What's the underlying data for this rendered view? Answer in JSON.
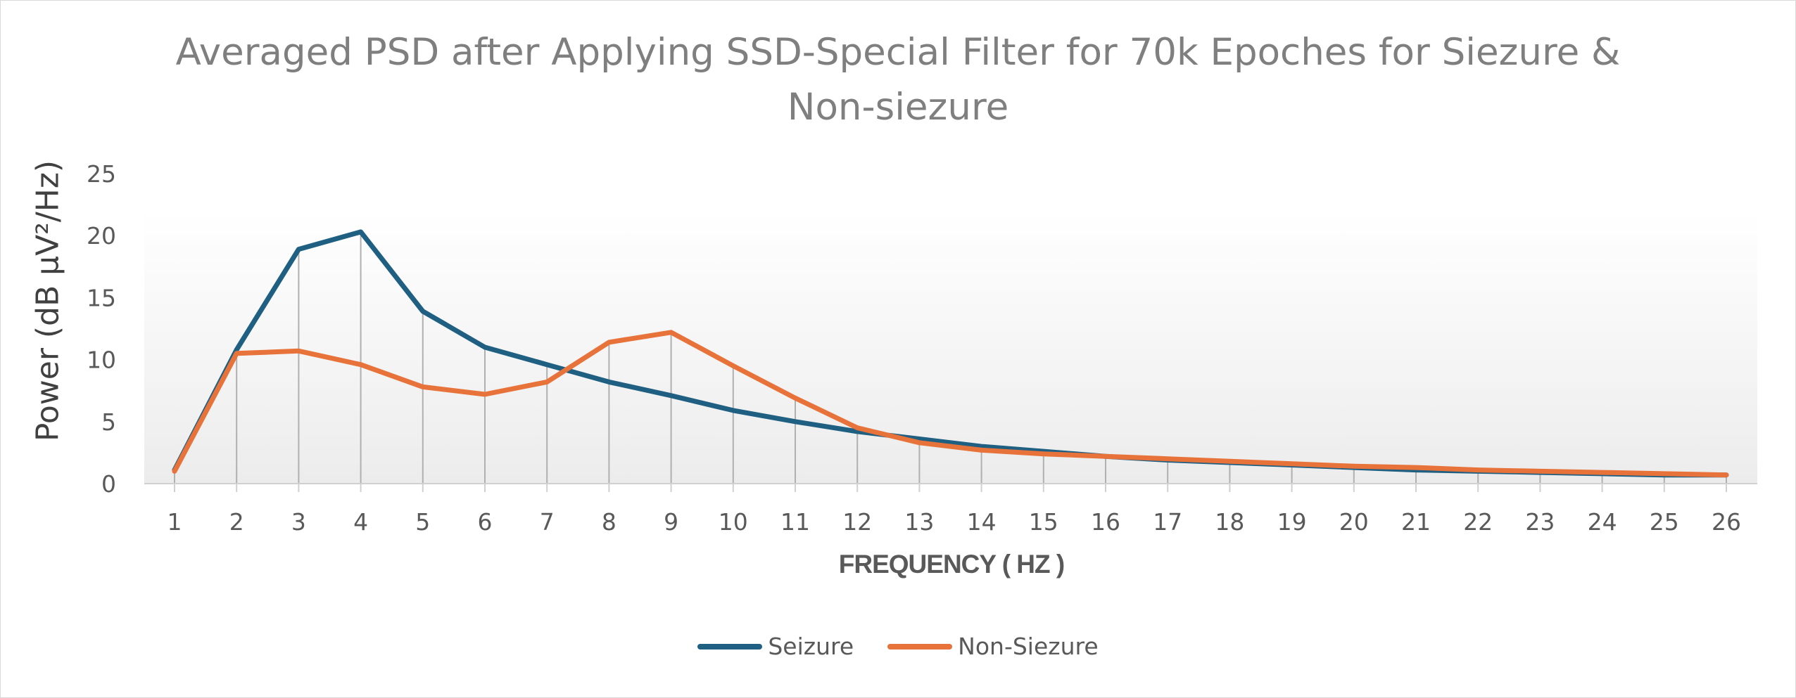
{
  "chart_data": {
    "type": "line",
    "title": "Averaged PSD after Applying SSD-Special Filter for 70k Epoches for Siezure & Non-siezure",
    "title_lines": [
      "Averaged PSD after Applying SSD-Special Filter for 70k Epoches for Siezure &",
      "Non-siezure"
    ],
    "xlabel": "FREQUENCY ( HZ )",
    "ylabel": "Power (dB µV²/Hz)",
    "categories": [
      "1",
      "2",
      "3",
      "4",
      "5",
      "6",
      "7",
      "8",
      "9",
      "10",
      "11",
      "12",
      "13",
      "14",
      "15",
      "16",
      "17",
      "18",
      "19",
      "20",
      "21",
      "22",
      "23",
      "24",
      "25",
      "26"
    ],
    "ylim": [
      0,
      25
    ],
    "yticks": [
      0,
      5,
      10,
      15,
      20,
      25
    ],
    "grid": false,
    "drop_lines": true,
    "legend_position": "bottom",
    "series": [
      {
        "name": "Seizure",
        "color": "#1f5f82",
        "values": [
          1.1,
          10.8,
          18.9,
          20.3,
          13.9,
          11.0,
          9.6,
          8.2,
          7.1,
          5.9,
          5.0,
          4.2,
          3.6,
          3.0,
          2.6,
          2.2,
          1.9,
          1.7,
          1.5,
          1.3,
          1.1,
          1.0,
          0.9,
          0.8,
          0.7,
          0.7
        ]
      },
      {
        "name": "Non-Siezure",
        "color": "#e8733a",
        "values": [
          1.0,
          10.5,
          10.7,
          9.6,
          7.8,
          7.2,
          8.2,
          11.4,
          12.2,
          9.5,
          6.9,
          4.5,
          3.3,
          2.7,
          2.4,
          2.2,
          2.0,
          1.8,
          1.6,
          1.4,
          1.3,
          1.1,
          1.0,
          0.9,
          0.8,
          0.7
        ]
      }
    ]
  }
}
